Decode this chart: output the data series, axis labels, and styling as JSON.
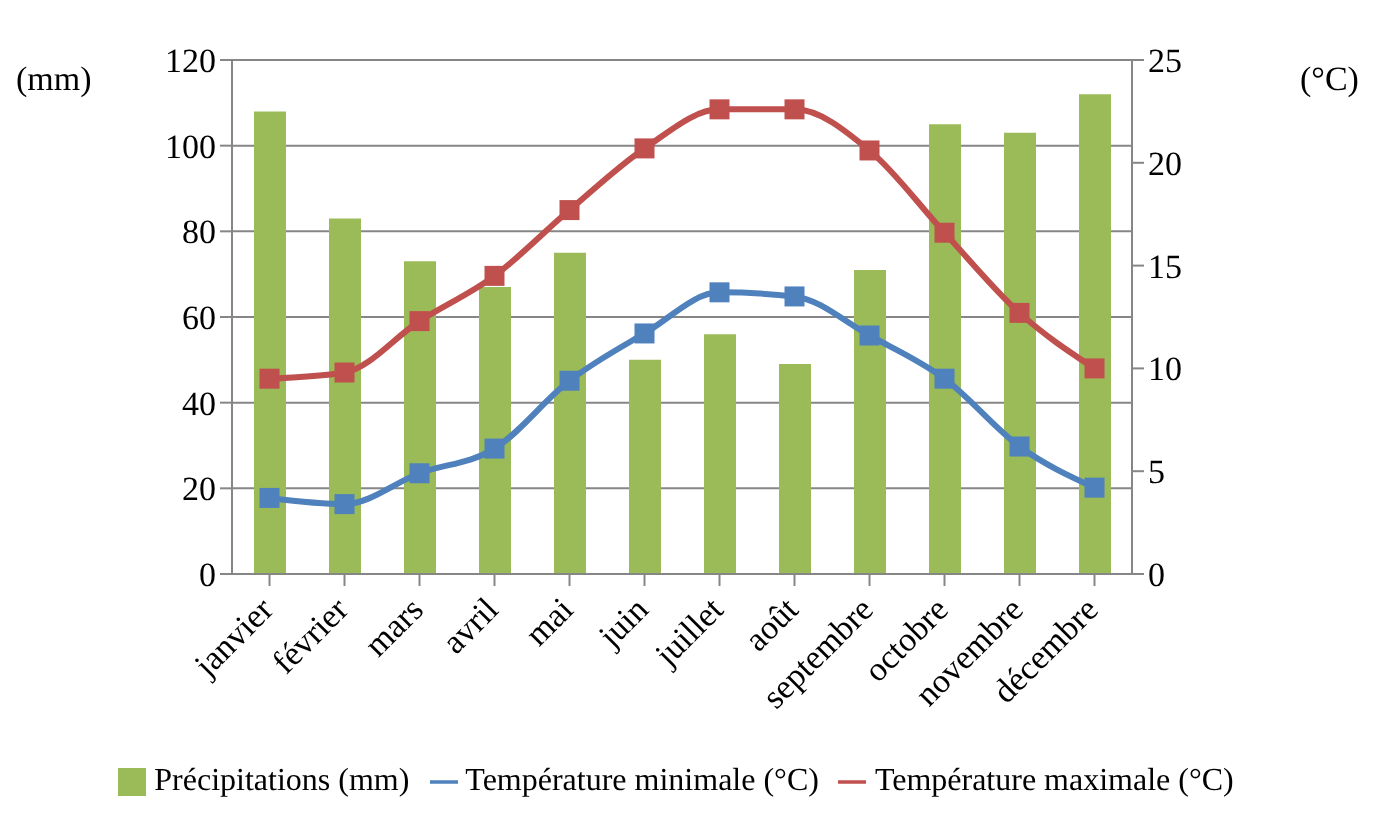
{
  "chart_data": {
    "type": "bar",
    "ylabel": "(mm)",
    "y2label": "(°C)",
    "categories": [
      "janvier",
      "février",
      "mars",
      "avril",
      "mai",
      "juin",
      "juillet",
      "août",
      "septembre",
      "octobre",
      "novembre",
      "décembre"
    ],
    "series": [
      {
        "name": "Précipitations (mm)",
        "color": "#9bbb59",
        "values": [
          108,
          83,
          73,
          67,
          75,
          50,
          56,
          49,
          71,
          105,
          103,
          112
        ]
      },
      {
        "name": "Température minimale (°C)",
        "type": "line",
        "axis": "y2",
        "color": "#4f81bd",
        "values": [
          3.7,
          3.4,
          4.9,
          6.1,
          9.4,
          11.7,
          13.7,
          13.5,
          11.6,
          9.5,
          6.2,
          4.2
        ]
      },
      {
        "name": "Température maximale (°C)",
        "type": "line",
        "axis": "y2",
        "color": "#c0504d",
        "values": [
          9.5,
          9.8,
          12.3,
          14.5,
          17.7,
          20.7,
          22.6,
          22.6,
          20.6,
          16.6,
          12.7,
          10.0
        ]
      }
    ],
    "ylim": [
      0,
      120
    ],
    "yticks": [
      0,
      20,
      40,
      60,
      80,
      100,
      120
    ],
    "y2lim": [
      0,
      25
    ],
    "y2ticks": [
      0,
      5,
      10,
      15,
      20,
      25
    ],
    "grid": "y",
    "legend": "bottom",
    "marker": "square"
  }
}
